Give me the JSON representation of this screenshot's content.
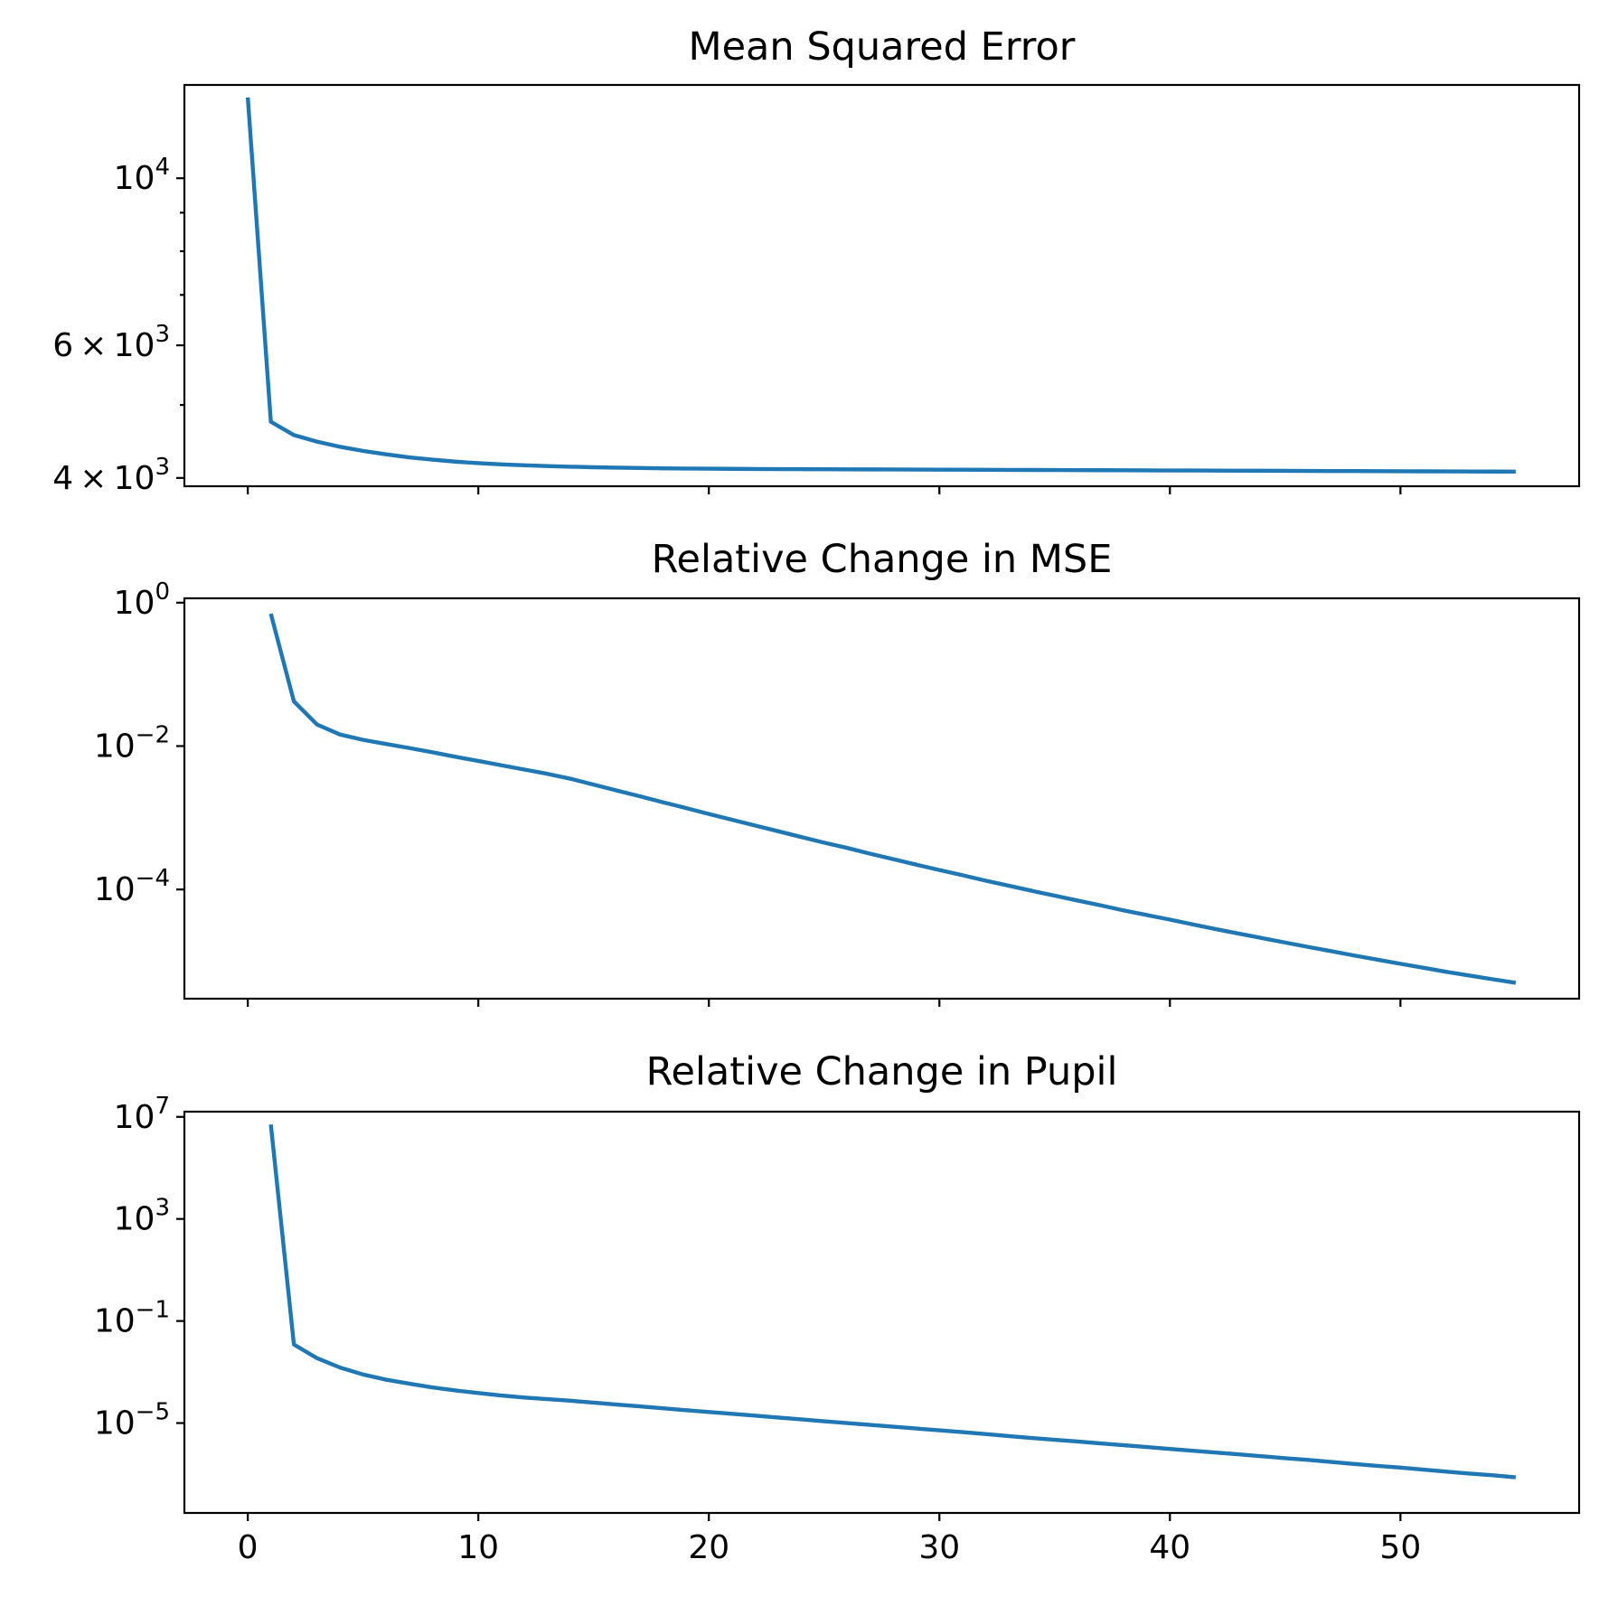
{
  "chart_data": [
    {
      "type": "line",
      "title": "Mean Squared Error",
      "xlabel": "",
      "ylabel": "",
      "yscale": "log",
      "xlim": [
        -2.75,
        57.75
      ],
      "ylim": [
        3900,
        13300
      ],
      "x_ticks": [
        0,
        10,
        20,
        30,
        40,
        50
      ],
      "x_tick_labels": [
        "",
        "",
        "",
        "",
        "",
        ""
      ],
      "y_ticks": [
        {
          "value": 10000,
          "mantissa": "",
          "base": "10",
          "exp": "4"
        },
        {
          "value": 6000,
          "mantissa": "6",
          "base": "10",
          "exp": "3"
        },
        {
          "value": 4000,
          "mantissa": "4",
          "base": "10",
          "exp": "3"
        }
      ],
      "y_minor_ticks": [
        5000,
        7000,
        8000,
        9000
      ],
      "grid": false,
      "line_color": "#1f77b4",
      "series": [
        {
          "x": [
            0,
            1,
            2,
            3,
            4,
            5,
            6,
            7,
            8,
            9,
            10,
            11,
            12,
            13,
            14,
            15,
            16,
            17,
            18,
            19,
            20,
            21,
            22,
            23,
            24,
            25,
            26,
            27,
            28,
            29,
            30,
            31,
            32,
            33,
            34,
            35,
            36,
            37,
            38,
            39,
            40,
            41,
            42,
            43,
            44,
            45,
            46,
            47,
            48,
            49,
            50,
            51,
            52,
            53,
            54,
            55
          ],
          "values": [
            12800,
            4750,
            4560,
            4470,
            4400,
            4345,
            4300,
            4260,
            4230,
            4205,
            4185,
            4170,
            4158,
            4148,
            4140,
            4133,
            4128,
            4124,
            4120,
            4117,
            4115,
            4113,
            4111,
            4110,
            4109,
            4108,
            4107,
            4106,
            4105,
            4104,
            4103,
            4102,
            4101,
            4100,
            4099,
            4098,
            4097,
            4096,
            4095,
            4094,
            4093,
            4092,
            4091,
            4090,
            4089,
            4088,
            4087,
            4086,
            4085,
            4084,
            4083,
            4082,
            4081,
            4080,
            4079,
            4078
          ]
        }
      ]
    },
    {
      "type": "line",
      "title": "Relative Change in MSE",
      "xlabel": "",
      "ylabel": "",
      "yscale": "log",
      "xlim": [
        -2.75,
        57.75
      ],
      "ylim": [
        3e-06,
        1.15
      ],
      "x_ticks": [
        0,
        10,
        20,
        30,
        40,
        50
      ],
      "x_tick_labels": [
        "",
        "",
        "",
        "",
        "",
        ""
      ],
      "y_ticks": [
        {
          "value": 1,
          "mantissa": "",
          "base": "10",
          "exp": "0"
        },
        {
          "value": 0.01,
          "mantissa": "",
          "base": "10",
          "exp": "−2"
        },
        {
          "value": 0.0001,
          "mantissa": "",
          "base": "10",
          "exp": "−4"
        }
      ],
      "y_minor_ticks": [],
      "grid": false,
      "line_color": "#1f77b4",
      "series": [
        {
          "x": [
            1,
            2,
            3,
            4,
            5,
            6,
            7,
            8,
            9,
            10,
            11,
            12,
            13,
            14,
            15,
            16,
            17,
            18,
            19,
            20,
            21,
            22,
            23,
            24,
            25,
            26,
            27,
            28,
            29,
            30,
            31,
            32,
            33,
            34,
            35,
            36,
            37,
            38,
            39,
            40,
            41,
            42,
            43,
            44,
            45,
            46,
            47,
            48,
            49,
            50,
            51,
            52,
            53,
            54,
            55
          ],
          "values": [
            0.7,
            0.042,
            0.02,
            0.0145,
            0.0122,
            0.0107,
            0.0094,
            0.0082,
            0.0071,
            0.0062,
            0.0054,
            0.0047,
            0.0041,
            0.0035,
            0.0029,
            0.0024,
            0.002,
            0.00165,
            0.00137,
            0.00113,
            0.00094,
            0.00078,
            0.00065,
            0.00054,
            0.00045,
            0.00038,
            0.000315,
            0.000265,
            0.000222,
            0.000187,
            0.000158,
            0.000133,
            0.000113,
            9.6e-05,
            8.2e-05,
            7e-05,
            6e-05,
            5.1e-05,
            4.4e-05,
            3.8e-05,
            3.25e-05,
            2.8e-05,
            2.42e-05,
            2.1e-05,
            1.82e-05,
            1.58e-05,
            1.38e-05,
            1.2e-05,
            1.05e-05,
            9.2e-06,
            8.1e-06,
            7.1e-06,
            6.3e-06,
            5.6e-06,
            5e-06
          ]
        }
      ]
    },
    {
      "type": "line",
      "title": "Relative Change in Pupil",
      "xlabel": "",
      "ylabel": "",
      "yscale": "log",
      "xlim": [
        -2.75,
        57.75
      ],
      "ylim": [
        3e-09,
        16000000
      ],
      "x_ticks": [
        0,
        10,
        20,
        30,
        40,
        50
      ],
      "x_tick_labels": [
        "0",
        "10",
        "20",
        "30",
        "40",
        "50"
      ],
      "y_ticks": [
        {
          "value": 10000000,
          "mantissa": "",
          "base": "10",
          "exp": "7"
        },
        {
          "value": 1000,
          "mantissa": "",
          "base": "10",
          "exp": "3"
        },
        {
          "value": 0.1,
          "mantissa": "",
          "base": "10",
          "exp": "−1"
        },
        {
          "value": 1e-05,
          "mantissa": "",
          "base": "10",
          "exp": "−5"
        }
      ],
      "y_minor_ticks": [],
      "grid": false,
      "line_color": "#1f77b4",
      "series": [
        {
          "x": [
            1,
            2,
            3,
            4,
            5,
            6,
            7,
            8,
            9,
            10,
            11,
            12,
            13,
            14,
            15,
            16,
            17,
            18,
            19,
            20,
            21,
            22,
            23,
            24,
            25,
            26,
            27,
            28,
            29,
            30,
            31,
            32,
            33,
            34,
            35,
            36,
            37,
            38,
            39,
            40,
            41,
            42,
            43,
            44,
            45,
            46,
            47,
            48,
            49,
            50,
            51,
            52,
            53,
            54,
            55
          ],
          "values": [
            5000000,
            0.012,
            0.0035,
            0.0015,
            0.0008,
            0.0005,
            0.00035,
            0.00025,
            0.00019,
            0.00015,
            0.00012,
            0.0001,
            8.7e-05,
            7.5e-05,
            6.3e-05,
            5.3e-05,
            4.5e-05,
            3.8e-05,
            3.2e-05,
            2.7e-05,
            2.3e-05,
            1.95e-05,
            1.65e-05,
            1.4e-05,
            1.18e-05,
            1e-05,
            8.5e-06,
            7.2e-06,
            6.1e-06,
            5.2e-06,
            4.4e-06,
            3.7e-06,
            3.1e-06,
            2.6e-06,
            2.2e-06,
            1.9e-06,
            1.6e-06,
            1.35e-06,
            1.15e-06,
            9.7e-07,
            8.2e-07,
            7e-07,
            5.9e-07,
            5e-07,
            4.2e-07,
            3.6e-07,
            3e-07,
            2.5e-07,
            2.1e-07,
            1.8e-07,
            1.5e-07,
            1.25e-07,
            1.05e-07,
            9e-08,
            7.5e-08
          ]
        }
      ]
    }
  ]
}
